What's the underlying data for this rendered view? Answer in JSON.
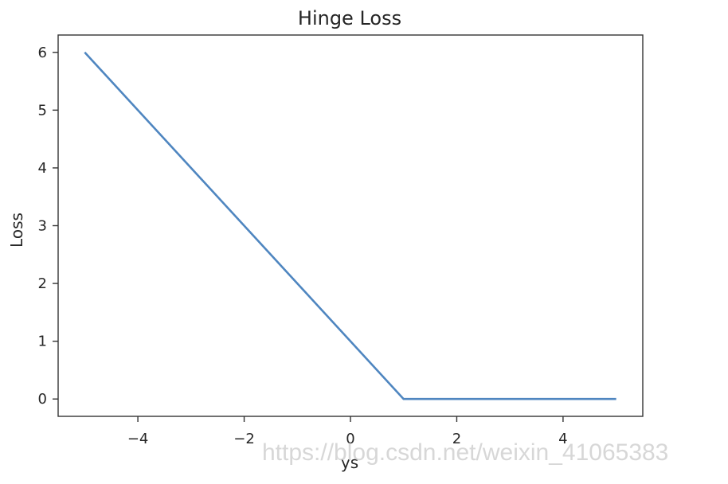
{
  "chart_data": {
    "type": "line",
    "title": "Hinge Loss",
    "xlabel": "ys",
    "ylabel": "Loss",
    "xlim": [
      -5.5,
      5.5
    ],
    "ylim": [
      -0.3,
      6.3
    ],
    "xticks": [
      -4,
      -2,
      0,
      2,
      4
    ],
    "xtick_labels": [
      "−4",
      "−2",
      "0",
      "2",
      "4"
    ],
    "yticks": [
      0,
      1,
      2,
      3,
      4,
      5,
      6
    ],
    "ytick_labels": [
      "0",
      "1",
      "2",
      "3",
      "4",
      "5",
      "6"
    ],
    "grid": false,
    "series": [
      {
        "color": "#4f86c0",
        "x": [
          -5,
          1,
          5
        ],
        "y": [
          6,
          0,
          0
        ]
      }
    ]
  },
  "watermark": "https://blog.csdn.net/weixin_41065383"
}
